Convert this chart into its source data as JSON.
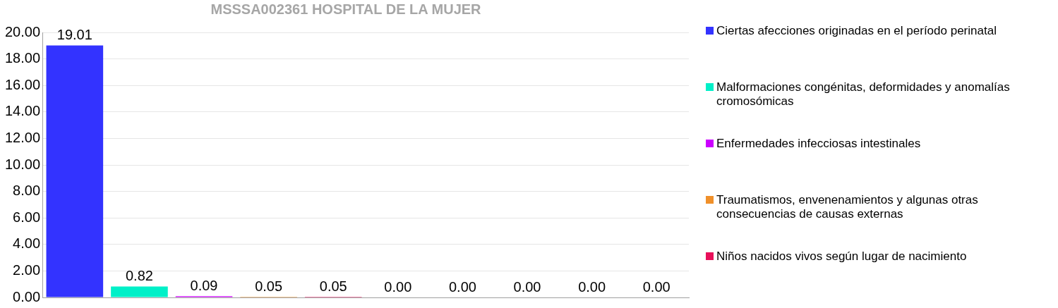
{
  "chart_data": {
    "type": "bar",
    "title": "MSSSA002361 HOSPITAL DE LA MUJER",
    "categories": [
      null,
      null,
      null,
      null,
      null,
      null,
      null,
      null,
      null,
      null
    ],
    "series": [
      {
        "name": "Ciertas afecciones originadas en el período perinatal",
        "color": "#3333ff",
        "values": [
          19.01,
          null,
          null,
          null,
          null,
          null,
          null,
          null,
          null,
          null
        ],
        "value_labels": [
          "19.01",
          null,
          null,
          null,
          null,
          null,
          null,
          null,
          null,
          null
        ]
      },
      {
        "name": "Malformaciones congénitas, deformidades y anomalías cromosómicas",
        "color": "#00f0c8",
        "values": [
          null,
          0.82,
          null,
          null,
          null,
          null,
          null,
          null,
          null,
          null
        ],
        "value_labels": [
          null,
          "0.82",
          null,
          null,
          null,
          null,
          null,
          null,
          null,
          null
        ]
      },
      {
        "name": "Enfermedades infecciosas intestinales",
        "color": "#cc00ff",
        "values": [
          null,
          null,
          0.09,
          null,
          null,
          null,
          null,
          null,
          null,
          null
        ],
        "value_labels": [
          null,
          null,
          "0.09",
          null,
          null,
          null,
          null,
          null,
          null,
          null
        ]
      },
      {
        "name": "Traumatismos, envenenamientos y algunas otras consecuencias de causas externas",
        "color": "#f0902a",
        "values": [
          null,
          null,
          null,
          0.05,
          null,
          null,
          null,
          null,
          null,
          null
        ],
        "value_labels": [
          null,
          null,
          null,
          "0.05",
          null,
          null,
          null,
          null,
          null,
          null
        ]
      },
      {
        "name": "Niños nacidos vivos según lugar de nacimiento",
        "color": "#e8105a",
        "values": [
          null,
          null,
          null,
          null,
          0.05,
          null,
          null,
          null,
          null,
          null
        ],
        "value_labels": [
          null,
          null,
          null,
          null,
          "0.05",
          null,
          null,
          null,
          null,
          null
        ]
      },
      {
        "color": "#808080",
        "values": [
          null,
          null,
          null,
          null,
          null,
          0,
          0,
          0,
          0,
          0
        ],
        "value_labels": [
          null,
          null,
          null,
          null,
          null,
          "0.00",
          "0.00",
          "0.00",
          "0.00",
          "0.00"
        ]
      }
    ],
    "ylim": [
      0,
      20
    ],
    "yticks": [
      {
        "value": 0,
        "label": "0.00"
      },
      {
        "value": 2,
        "label": "2.00"
      },
      {
        "value": 4,
        "label": "4.00"
      },
      {
        "value": 6,
        "label": "6.00"
      },
      {
        "value": 8,
        "label": "8.00"
      },
      {
        "value": 10,
        "label": "10.00"
      },
      {
        "value": 12,
        "label": "12.00"
      },
      {
        "value": 14,
        "label": "14.00"
      },
      {
        "value": 16,
        "label": "16.00"
      },
      {
        "value": 18,
        "label": "18.00"
      },
      {
        "value": 20,
        "label": "20.00"
      }
    ],
    "grid": "y",
    "legend": "right"
  }
}
